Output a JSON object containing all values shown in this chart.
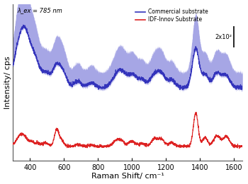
{
  "title": "",
  "xlabel": "Raman Shift/ cm⁻¹",
  "ylabel": "Intensity/ cps",
  "xlim": [
    300,
    1650
  ],
  "ylim": [
    -0.08,
    1.25
  ],
  "lambda_text": "λ_ex = 785 nm",
  "scalebar_text": "2x10²",
  "legend_commercial": "Commercial substrate",
  "legend_idf": "IDF-Innov Substrate",
  "blue_color": "#3333bb",
  "blue_fill_color": "#8888dd",
  "red_color": "#dd2222",
  "bg_color": "#f0f0f8"
}
